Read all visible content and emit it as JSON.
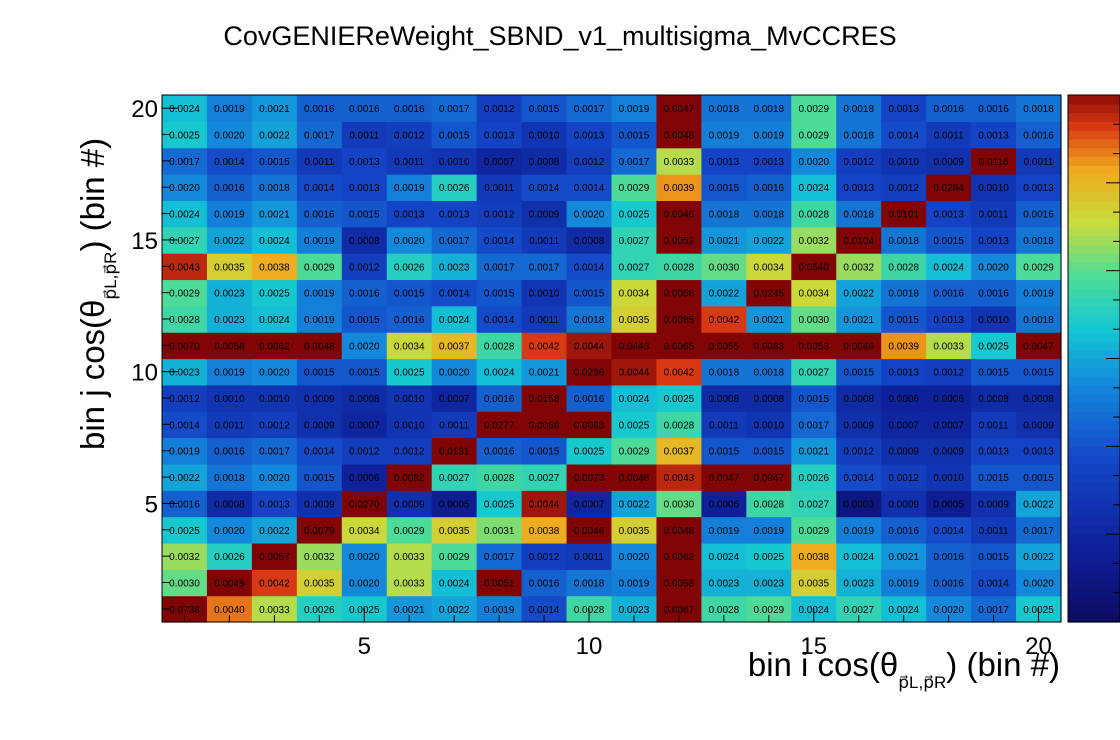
{
  "chart_data": {
    "type": "heatmap",
    "title": "CovGENIEReWeight_SBND_v1_multisigma_MvCCRES",
    "xlabel": {
      "main": "bin i cos(θ",
      "sub": "p⃗L,p⃗R",
      "tail": ") (bin #)"
    },
    "ylabel": {
      "main": "bin j cos(θ",
      "sub": "p⃗L,p⃗R",
      "tail": ") (bin #)"
    },
    "x_range": [
      0.5,
      20.5
    ],
    "y_range": [
      0.5,
      20.5
    ],
    "x_ticks": [
      5,
      10,
      15,
      20
    ],
    "y_ticks": [
      5,
      10,
      15,
      20
    ],
    "nx": 20,
    "ny": 20,
    "diag": 0.0045,
    "z_range": [
      0,
      0.0045
    ],
    "rows": [
      {
        "j": 1,
        "values": [
          0.0738,
          0.004,
          0.0033,
          0.0026,
          0.0025,
          0.0021,
          0.0022,
          0.0019,
          0.0014,
          0.0028,
          0.0023,
          0.0067,
          0.0028,
          0.0029,
          0.0024,
          0.0027,
          0.0024,
          0.002,
          0.0017,
          0.0025
        ]
      },
      {
        "j": 2,
        "values": [
          0.003,
          0.0049,
          0.0042,
          0.0035,
          0.002,
          0.0033,
          0.0024,
          0.0051,
          0.0016,
          0.0018,
          0.0019,
          0.0058,
          0.0023,
          0.0023,
          0.0035,
          0.0023,
          0.0019,
          0.0016,
          0.0014,
          0.002
        ]
      },
      {
        "j": 3,
        "values": [
          0.0032,
          0.0026,
          0.0057,
          0.0032,
          0.002,
          0.0033,
          0.0029,
          0.0017,
          0.0012,
          0.0011,
          0.002,
          0.0062,
          0.0024,
          0.0025,
          0.0038,
          0.0024,
          0.0021,
          0.0016,
          0.0015,
          0.0022
        ]
      },
      {
        "j": 4,
        "values": [
          0.0025,
          0.002,
          0.0022,
          0.0079,
          0.0034,
          0.0029,
          0.0035,
          0.0031,
          0.0038,
          0.0046,
          0.0035,
          0.0048,
          0.0019,
          0.0019,
          0.0029,
          0.0019,
          0.0016,
          0.0014,
          0.0011,
          0.0017
        ]
      },
      {
        "j": 5,
        "values": [
          0.0016,
          0.0008,
          0.0013,
          0.0009,
          0.027,
          0.0009,
          0.0005,
          0.0025,
          0.0044,
          0.0007,
          0.0022,
          0.003,
          0.0006,
          0.0028,
          0.0027,
          0.0003,
          0.0009,
          0.0005,
          0.0009,
          0.0022
        ]
      },
      {
        "j": 6,
        "values": [
          0.0022,
          0.0018,
          0.002,
          0.0015,
          0.0006,
          0.0082,
          0.0027,
          0.0028,
          0.0027,
          0.0073,
          0.0048,
          0.0043,
          0.0047,
          0.0047,
          0.0026,
          0.0014,
          0.0012,
          0.001,
          0.0015,
          0.0015
        ]
      },
      {
        "j": 7,
        "values": [
          0.0019,
          0.0016,
          0.0017,
          0.0014,
          0.0012,
          0.0012,
          0.0131,
          0.0016,
          0.0015,
          0.0025,
          0.0029,
          0.0037,
          0.0015,
          0.0015,
          0.0021,
          0.0012,
          0.0009,
          0.0009,
          0.0013,
          0.0013
        ]
      },
      {
        "j": 8,
        "values": [
          0.0014,
          0.0011,
          0.0012,
          0.0009,
          0.0007,
          0.001,
          0.0011,
          0.0277,
          0.0068,
          0.0083,
          0.0025,
          0.0028,
          0.0011,
          0.001,
          0.0017,
          0.0009,
          0.0007,
          0.0007,
          0.0011,
          0.0009
        ]
      },
      {
        "j": 9,
        "values": [
          0.0012,
          0.001,
          0.001,
          0.0009,
          0.0008,
          0.001,
          0.0007,
          0.0016,
          0.0158,
          0.0016,
          0.0024,
          0.0025,
          0.0008,
          0.0008,
          0.0015,
          0.0008,
          0.0006,
          0.0006,
          0.0008,
          0.0008
        ]
      },
      {
        "j": 10,
        "values": [
          0.0023,
          0.0019,
          0.002,
          0.0015,
          0.0015,
          0.0025,
          0.002,
          0.0024,
          0.0021,
          0.0296,
          0.0044,
          0.0042,
          0.0018,
          0.0018,
          0.0027,
          0.0015,
          0.0013,
          0.0012,
          0.0015,
          0.0015
        ]
      },
      {
        "j": 11,
        "values": [
          0.007,
          0.0058,
          0.0062,
          0.0048,
          0.002,
          0.0034,
          0.0037,
          0.0028,
          0.0042,
          0.0044,
          0.0443,
          0.0065,
          0.0055,
          0.0083,
          0.0053,
          0.0046,
          0.0039,
          0.0033,
          0.0025,
          0.0047
        ]
      },
      {
        "j": 12,
        "values": [
          0.0028,
          0.0023,
          0.0024,
          0.0019,
          0.0015,
          0.0016,
          0.0024,
          0.0014,
          0.0011,
          0.0018,
          0.0035,
          0.0085,
          0.0042,
          0.0021,
          0.003,
          0.0021,
          0.0015,
          0.0013,
          0.001,
          0.0018
        ]
      },
      {
        "j": 13,
        "values": [
          0.0029,
          0.0023,
          0.0025,
          0.0019,
          0.0016,
          0.0015,
          0.0014,
          0.0015,
          0.001,
          0.0015,
          0.0034,
          0.0056,
          0.0022,
          0.0245,
          0.0034,
          0.0022,
          0.0018,
          0.0016,
          0.0016,
          0.0019
        ]
      },
      {
        "j": 14,
        "values": [
          0.0043,
          0.0035,
          0.0038,
          0.0029,
          0.0012,
          0.0026,
          0.0023,
          0.0017,
          0.0017,
          0.0014,
          0.0027,
          0.0028,
          0.003,
          0.0034,
          0.054,
          0.0032,
          0.0028,
          0.0024,
          0.002,
          0.0029
        ]
      },
      {
        "j": 15,
        "values": [
          0.0027,
          0.0022,
          0.0024,
          0.0019,
          0.0008,
          0.002,
          0.0017,
          0.0014,
          0.0011,
          0.0008,
          0.0027,
          0.0053,
          0.0021,
          0.0022,
          0.0032,
          0.0104,
          0.0018,
          0.0015,
          0.0013,
          0.0018
        ]
      },
      {
        "j": 16,
        "values": [
          0.0024,
          0.0019,
          0.0021,
          0.0016,
          0.0015,
          0.0013,
          0.0013,
          0.0012,
          0.0009,
          0.002,
          0.0025,
          0.0046,
          0.0018,
          0.0018,
          0.0028,
          0.0018,
          0.0101,
          0.0013,
          0.0011,
          0.0016
        ]
      },
      {
        "j": 17,
        "values": [
          0.002,
          0.0016,
          0.0018,
          0.0014,
          0.0013,
          0.0019,
          0.0026,
          0.0011,
          0.0014,
          0.0014,
          0.0029,
          0.0039,
          0.0015,
          0.0016,
          0.0024,
          0.0013,
          0.0012,
          0.0294,
          0.001,
          0.0013
        ]
      },
      {
        "j": 18,
        "values": [
          0.0017,
          0.0014,
          0.0015,
          0.0011,
          0.0013,
          0.0011,
          0.001,
          0.0007,
          0.0008,
          0.0012,
          0.0017,
          0.0033,
          0.0013,
          0.0013,
          0.002,
          0.0012,
          0.001,
          0.0009,
          0.0116,
          0.0011
        ]
      },
      {
        "j": 19,
        "values": [
          0.0025,
          0.002,
          0.0022,
          0.0017,
          0.0011,
          0.0012,
          0.0015,
          0.0013,
          0.001,
          0.0013,
          0.0015,
          0.0048,
          0.0019,
          0.0019,
          0.0029,
          0.0018,
          0.0014,
          0.0011,
          0.0013,
          0.0016
        ]
      },
      {
        "j": 20,
        "values": [
          0.0024,
          0.0019,
          0.0021,
          0.0016,
          0.0016,
          0.0016,
          0.0017,
          0.0012,
          0.0015,
          0.0017,
          0.0019,
          0.0047,
          0.0018,
          0.0018,
          0.0029,
          0.0018,
          0.0013,
          0.0016,
          0.0016,
          0.0018
        ]
      }
    ],
    "colorbar": {
      "min": 0,
      "max": 0.0045,
      "ticks": 18
    }
  }
}
